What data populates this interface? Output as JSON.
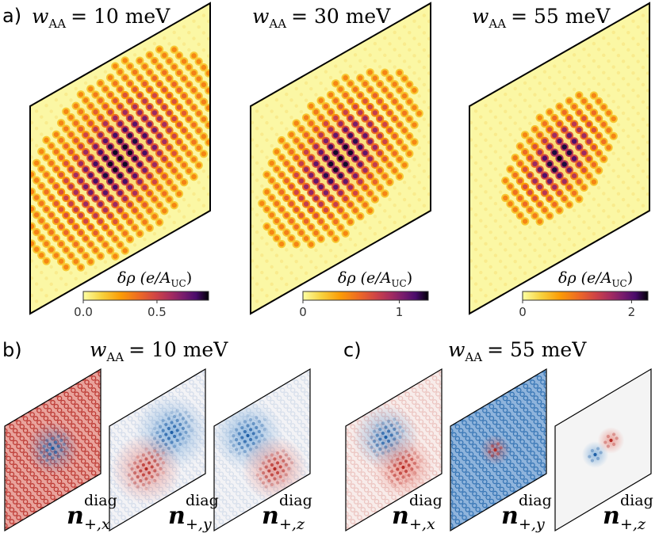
{
  "panel_labels": {
    "a": "a)",
    "b": "b)",
    "c": "c)"
  },
  "top_panels": [
    {
      "w_symbol": "w",
      "w_sub": "AA",
      "w_value": "= 10 meV",
      "colorbar_label": "δρ (e/A",
      "colorbar_sub": "UC",
      "colorbar_close": ")",
      "ticks": [
        "0.0",
        "0.5"
      ],
      "tick_values": [
        0.0,
        0.5
      ],
      "vmax": 0.85,
      "spot_scale": 1.0
    },
    {
      "w_symbol": "w",
      "w_sub": "AA",
      "w_value": "= 30 meV",
      "colorbar_label": "δρ (e/A",
      "colorbar_sub": "UC",
      "colorbar_close": ")",
      "ticks": [
        "0",
        "1"
      ],
      "tick_values": [
        0,
        1
      ],
      "vmax": 1.3,
      "spot_scale": 0.82
    },
    {
      "w_symbol": "w",
      "w_sub": "AA",
      "w_value": "= 55 meV",
      "colorbar_label": "δρ (e/A",
      "colorbar_sub": "UC",
      "colorbar_close": ")",
      "ticks": [
        "0",
        "2"
      ],
      "tick_values": [
        0,
        2
      ],
      "vmax": 2.3,
      "spot_scale": 0.6
    }
  ],
  "bottom_groups": [
    {
      "w_symbol": "w",
      "w_sub": "AA",
      "w_value": "= 10 meV",
      "maps": [
        {
          "symbol": "n",
          "sup": "diag",
          "sub": "+,x"
        },
        {
          "symbol": "n",
          "sup": "diag",
          "sub": "+,y"
        },
        {
          "symbol": "n",
          "sup": "diag",
          "sub": "+,z"
        }
      ]
    },
    {
      "w_symbol": "w",
      "w_sub": "AA",
      "w_value": "= 55 meV",
      "maps": [
        {
          "symbol": "n",
          "sup": "diag",
          "sub": "+,x"
        },
        {
          "symbol": "n",
          "sup": "diag",
          "sub": "+,y"
        },
        {
          "symbol": "n",
          "sup": "diag",
          "sub": "+,z"
        }
      ]
    }
  ],
  "colors": {
    "background_density": "#fbf7a4",
    "inferno": [
      "#fcffa4",
      "#f7d13d",
      "#fb9b06",
      "#ed6925",
      "#cf4446",
      "#a52c60",
      "#781c6d",
      "#4a0c6b",
      "#1b0c41",
      "#000004"
    ],
    "red": "#c43a32",
    "blue": "#2f74b5",
    "neutral": "#f4f4f4"
  }
}
